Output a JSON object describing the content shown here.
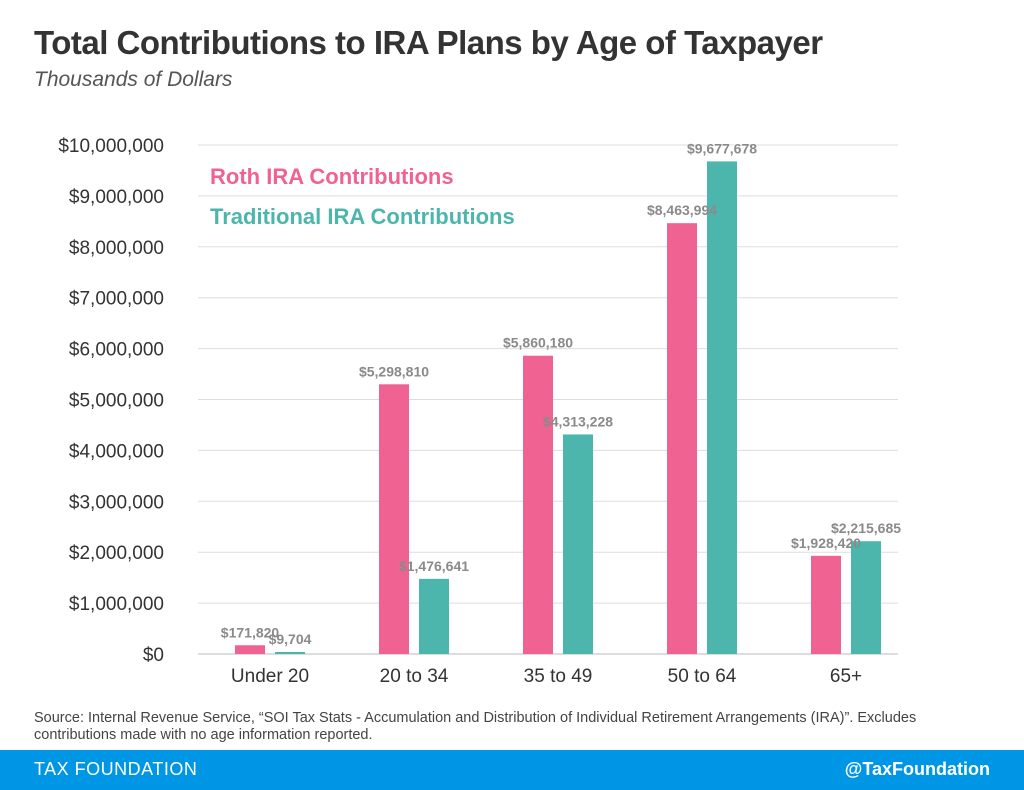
{
  "title": "Total Contributions to IRA Plans by Age of Taxpayer",
  "subtitle": "Thousands of Dollars",
  "source": "Source: Internal Revenue Service, “SOI Tax Stats - Accumulation and Distribution of Individual Retirement Arrangements (IRA)”. Excludes contributions made with no age information reported.",
  "footer": {
    "left": "TAX FOUNDATION",
    "right": "@TaxFoundation"
  },
  "colors": {
    "roth": "#f06292",
    "traditional": "#4db6ac",
    "grid": "#dddddd",
    "footer": "#0096e6"
  },
  "chart_data": {
    "type": "bar",
    "categories": [
      "Under 20",
      "20 to 34",
      "35 to 49",
      "50 to 64",
      "65+"
    ],
    "series": [
      {
        "name": "Roth IRA Contributions",
        "values": [
          171820,
          5298810,
          5860180,
          8463994,
          1928420
        ],
        "labels": [
          "$171,820",
          "$5,298,810",
          "$5,860,180",
          "$8,463,994",
          "$1,928,420"
        ]
      },
      {
        "name": "Traditional IRA Contributions",
        "values": [
          9704,
          1476641,
          4313228,
          9677678,
          2215685
        ],
        "labels": [
          "$9,704",
          "$1,476,641",
          "$4,313,228",
          "$9,677,678",
          "$2,215,685"
        ]
      }
    ],
    "ylim": [
      0,
      10000000
    ],
    "yticks": [
      "$0",
      "$1,000,000",
      "$2,000,000",
      "$3,000,000",
      "$4,000,000",
      "$5,000,000",
      "$6,000,000",
      "$7,000,000",
      "$8,000,000",
      "$9,000,000",
      "$10,000,000"
    ],
    "grid": true,
    "legend": "top-left"
  }
}
